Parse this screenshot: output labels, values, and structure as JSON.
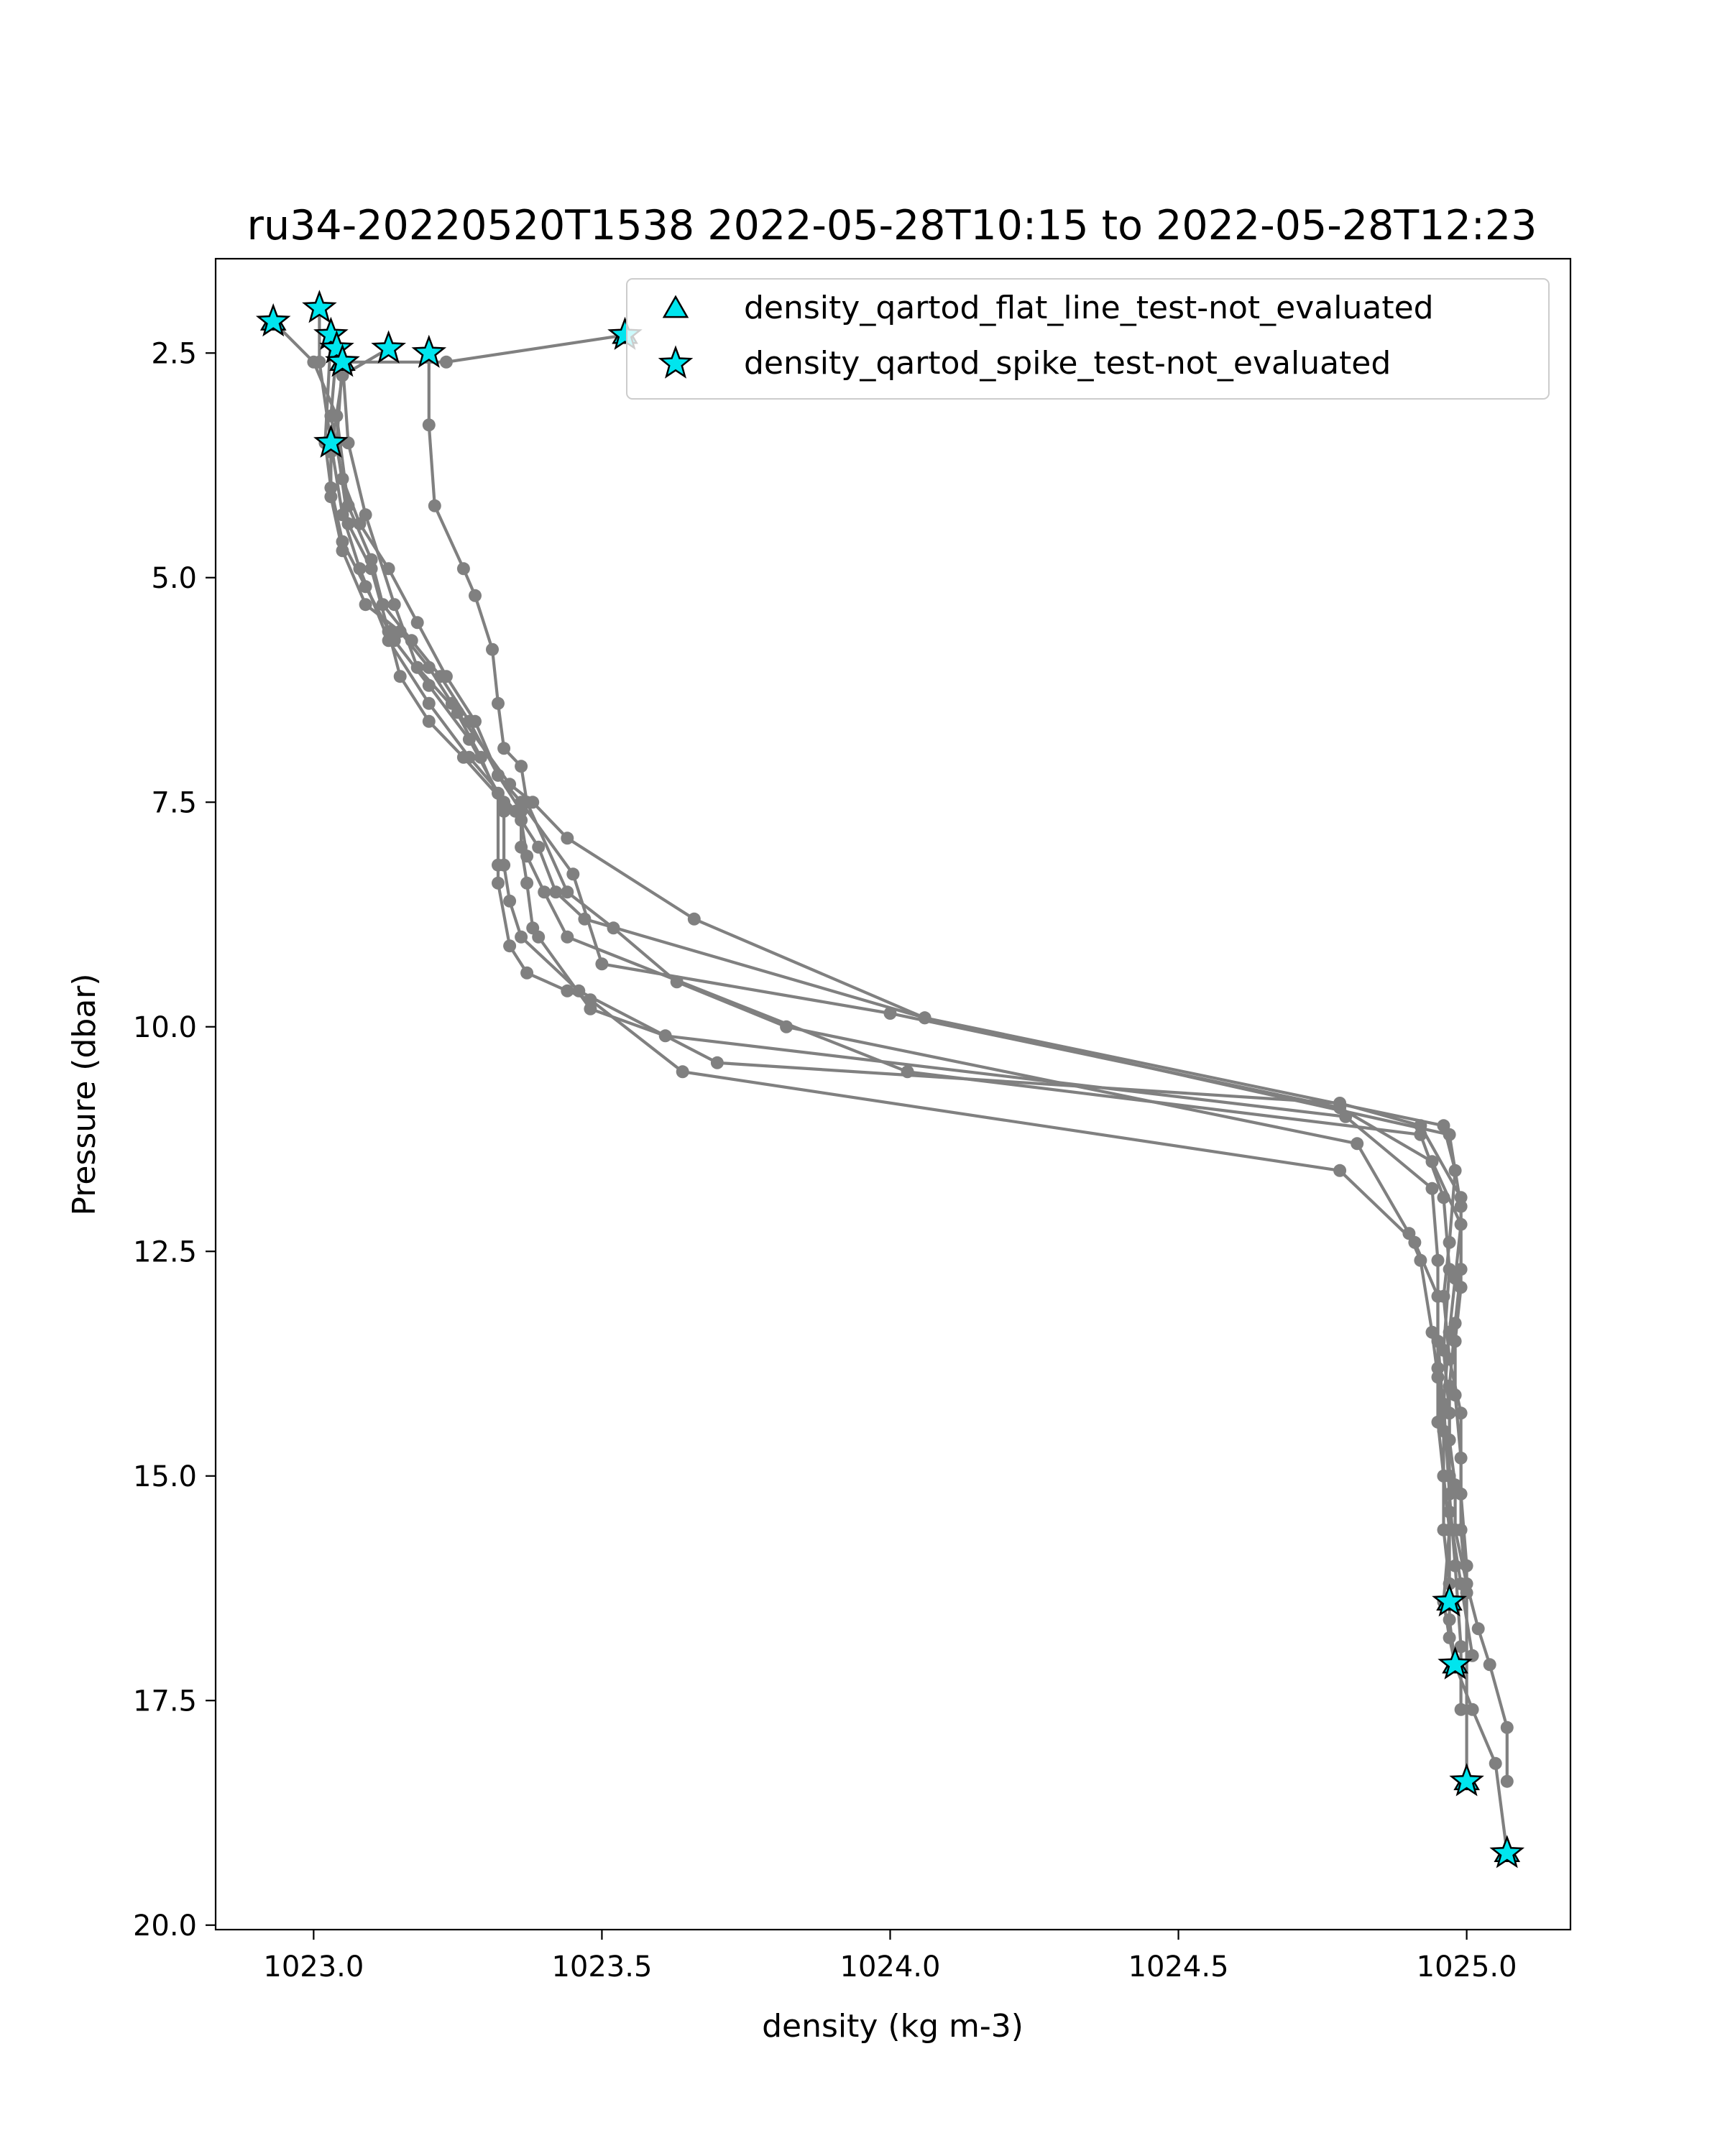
{
  "chart_data": {
    "type": "scatter",
    "title": "ru34-20220520T1538 2022-05-28T10:15 to 2022-05-28T12:23",
    "xlabel": "density (kg m-3)",
    "ylabel": "Pressure (dbar)",
    "xlim": [
      1022.83,
      1025.18
    ],
    "ylim": [
      20.05,
      1.45
    ],
    "y_inverted": true,
    "grid": false,
    "legend_position": "top-right",
    "x_ticks": [
      1023.0,
      1023.5,
      1024.0,
      1024.5,
      1025.0
    ],
    "x_tick_labels": [
      "1023.0",
      "1023.5",
      "1024.0",
      "1024.5",
      "1025.0"
    ],
    "y_ticks": [
      2.5,
      5.0,
      7.5,
      10.0,
      12.5,
      15.0,
      17.5,
      20.0
    ],
    "y_tick_labels": [
      "2.5",
      "5.0",
      "7.5",
      "10.0",
      "12.5",
      "15.0",
      "17.5",
      "20.0"
    ],
    "line_color": "#808080",
    "marker_fill": "#00e5ee",
    "profiles": [
      {
        "x": [
          1023.2,
          1023.2,
          1023.21,
          1023.26,
          1023.28,
          1023.31,
          1023.32,
          1023.33,
          1023.36,
          1023.37,
          1023.44,
          1023.52,
          1023.63,
          1023.82,
          1024.81,
          1024.9,
          1024.92,
          1024.94,
          1024.95,
          1024.96,
          1024.96,
          1024.97,
          1024.96,
          1024.97,
          1024.98,
          1025.01,
          1025.05,
          1025.07
        ],
        "y": [
          2.5,
          3.3,
          4.2,
          4.9,
          5.2,
          5.8,
          6.4,
          6.9,
          7.1,
          7.5,
          8.5,
          8.9,
          9.5,
          10.0,
          11.3,
          12.3,
          12.6,
          13.4,
          13.9,
          14.5,
          15.0,
          15.6,
          16.4,
          16.8,
          17.1,
          17.6,
          18.2,
          19.2
        ]
      },
      {
        "x": [
          1023.54,
          1023.23,
          1023.05,
          1023.06,
          1023.09,
          1023.14,
          1023.18,
          1023.25,
          1023.34,
          1023.38,
          1023.44,
          1023.66,
          1024.06,
          1024.97,
          1024.99,
          1024.99,
          1024.98,
          1024.97,
          1024.97,
          1024.98,
          1024.98,
          1025.0,
          1025.02,
          1025.04,
          1025.07,
          1025.07
        ],
        "y": [
          2.3,
          2.6,
          2.6,
          3.5,
          4.3,
          5.3,
          6.0,
          6.5,
          7.3,
          7.5,
          7.9,
          8.8,
          9.9,
          11.2,
          12.0,
          12.7,
          13.3,
          14.0,
          14.6,
          15.1,
          15.6,
          16.2,
          16.7,
          17.1,
          17.8,
          18.4
        ]
      },
      {
        "x": [
          1023.13,
          1023.05,
          1023.03,
          1023.03,
          1023.05,
          1023.09,
          1023.15,
          1023.2,
          1023.24,
          1023.29,
          1023.33,
          1023.33,
          1023.34,
          1023.36,
          1023.46,
          1023.7,
          1024.78,
          1024.92,
          1024.99,
          1024.99,
          1024.98,
          1024.98,
          1024.99,
          1024.99,
          1025.0
        ],
        "y": [
          2.45,
          2.75,
          3.6,
          4.1,
          4.7,
          5.3,
          5.6,
          6.0,
          6.4,
          7.0,
          7.6,
          8.2,
          8.6,
          9.0,
          9.6,
          10.4,
          10.85,
          11.1,
          11.9,
          12.9,
          13.5,
          14.1,
          14.8,
          15.6,
          16.3
        ]
      },
      {
        "x": [
          1023.04,
          1023.03,
          1023.05,
          1023.08,
          1023.13,
          1023.18,
          1023.23,
          1023.28,
          1023.32,
          1023.36,
          1023.45,
          1023.5,
          1024.0,
          1024.78,
          1024.94,
          1024.99,
          1024.98,
          1024.97,
          1024.96,
          1024.97,
          1024.98,
          1024.99,
          1024.99
        ],
        "y": [
          2.45,
          3.2,
          3.9,
          4.4,
          4.9,
          5.5,
          6.1,
          6.6,
          7.2,
          7.5,
          8.3,
          9.3,
          9.85,
          10.9,
          11.5,
          12.2,
          12.8,
          13.4,
          14.2,
          15.2,
          16.0,
          16.9,
          17.6
        ]
      },
      {
        "x": [
          1023.01,
          1023.01,
          1023.03,
          1023.05,
          1023.08,
          1023.13,
          1023.2,
          1023.27,
          1023.35,
          1023.39,
          1023.42,
          1023.47,
          1024.06,
          1024.96,
          1024.98,
          1024.97,
          1024.96,
          1024.97,
          1024.99,
          1024.99,
          1025.0,
          1025.0
        ],
        "y": [
          2.0,
          2.6,
          3.5,
          4.3,
          4.9,
          5.7,
          6.4,
          7.0,
          7.6,
          8.0,
          8.5,
          8.8,
          9.9,
          11.1,
          11.6,
          12.4,
          13.0,
          13.7,
          14.3,
          15.2,
          16.0,
          18.4
        ]
      },
      {
        "x": [
          1022.93,
          1023.0,
          1023.04,
          1023.06,
          1023.1,
          1023.12,
          1023.17,
          1023.22,
          1023.27,
          1023.32,
          1023.36,
          1023.36,
          1023.37,
          1023.38,
          1023.39,
          1023.48,
          1023.61,
          1024.79,
          1024.94,
          1024.95,
          1024.95,
          1024.96,
          1024.97,
          1024.97
        ],
        "y": [
          2.15,
          2.6,
          3.2,
          4.2,
          4.8,
          5.3,
          5.7,
          6.1,
          6.6,
          7.2,
          7.6,
          8.0,
          8.4,
          8.9,
          9.0,
          9.8,
          10.1,
          11.0,
          11.8,
          12.6,
          13.5,
          14.3,
          15.0,
          16.4
        ]
      },
      {
        "x": [
          1023.03,
          1023.02,
          1023.03,
          1023.05,
          1023.09,
          1023.14,
          1023.2,
          1023.27,
          1023.32,
          1023.32,
          1023.32,
          1023.34,
          1023.37,
          1023.44,
          1023.48,
          1023.64,
          1024.78,
          1024.91,
          1024.95,
          1024.95,
          1024.95,
          1024.96,
          1024.96,
          1024.97,
          1024.97,
          1024.98
        ],
        "y": [
          2.3,
          3.5,
          4.0,
          4.6,
          5.1,
          5.7,
          6.2,
          6.8,
          7.4,
          8.2,
          8.4,
          9.1,
          9.4,
          9.6,
          9.7,
          10.5,
          11.6,
          12.4,
          13.0,
          13.8,
          14.4,
          15.0,
          15.6,
          16.2,
          16.6,
          17.1
        ]
      },
      {
        "x": [
          1023.05,
          1023.04,
          1023.06,
          1023.1,
          1023.13,
          1023.15,
          1023.2,
          1023.26,
          1023.33,
          1023.36,
          1023.37,
          1023.4,
          1023.44,
          1024.03,
          1024.92,
          1024.96,
          1024.97,
          1024.96,
          1024.97,
          1024.97,
          1024.99,
          1025.01
        ],
        "y": [
          2.6,
          3.5,
          4.4,
          4.9,
          5.6,
          6.1,
          6.6,
          7.0,
          7.5,
          7.7,
          8.1,
          8.5,
          9.0,
          10.5,
          11.2,
          11.9,
          12.7,
          13.6,
          14.3,
          15.4,
          16.2,
          17.0
        ]
      }
    ],
    "series": [
      {
        "name": "density_qartod_flat_line_test-not_evaluated",
        "marker": "triangle",
        "x": [
          1023.54,
          1023.05,
          1022.93,
          1024.97,
          1024.98,
          1025.0,
          1025.07
        ],
        "y": [
          2.3,
          2.6,
          2.15,
          16.4,
          17.1,
          18.4,
          19.2
        ]
      },
      {
        "name": "density_qartod_spike_test-not_evaluated",
        "marker": "star",
        "x": [
          1023.01,
          1022.93,
          1023.03,
          1023.04,
          1023.05,
          1023.13,
          1023.2,
          1023.54,
          1023.03,
          1024.97,
          1024.98,
          1025.0,
          1025.07
        ],
        "y": [
          2.0,
          2.15,
          2.3,
          2.45,
          2.6,
          2.45,
          2.5,
          2.3,
          3.5,
          16.4,
          17.1,
          18.4,
          19.2
        ]
      }
    ]
  }
}
